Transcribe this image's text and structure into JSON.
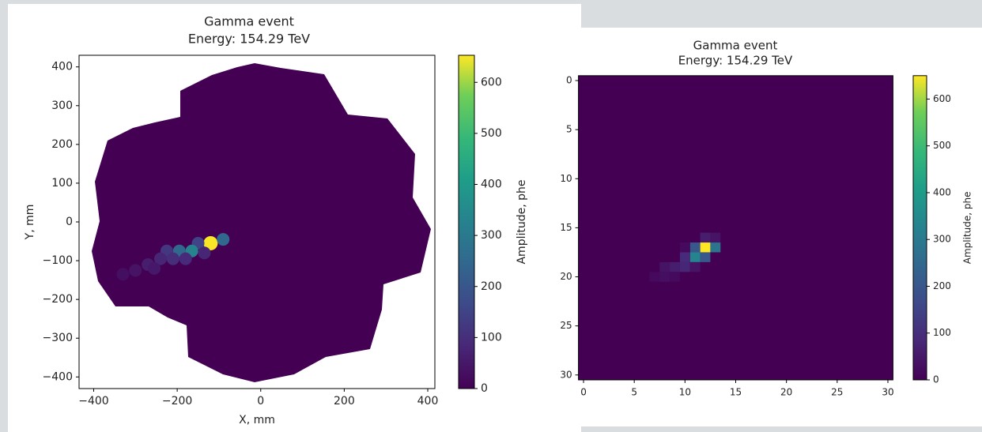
{
  "chart_data": [
    {
      "type": "hexcamera",
      "title": "Gamma event",
      "subtitle": "Energy: 154.29 TeV",
      "x_label": "X, mm",
      "y_label": "Y, mm",
      "colorbar_label": "Amplitude, phe",
      "xlim": [
        -435,
        417
      ],
      "ylim": [
        -430,
        430
      ],
      "xticks": [
        {
          "value": -400,
          "label": "−400"
        },
        {
          "value": -200,
          "label": "−200"
        },
        0,
        200,
        400
      ],
      "yticks": [
        {
          "value": -400,
          "label": "−400"
        },
        {
          "value": -300,
          "label": "−300"
        },
        {
          "value": -200,
          "label": "−200"
        },
        {
          "value": -100,
          "label": "−100"
        },
        0,
        100,
        200,
        300,
        400
      ],
      "clim": [
        0,
        653
      ],
      "cticks": [
        0,
        100,
        200,
        300,
        400,
        500,
        600
      ],
      "colormap": "viridis",
      "x": [
        -120,
        -150,
        -90,
        -165,
        -195,
        -225,
        -210,
        -240,
        -180,
        -270,
        -300,
        -330,
        -135,
        -255
      ],
      "y": [
        -55,
        -55,
        -45,
        -75,
        -75,
        -75,
        -95,
        -95,
        -95,
        -110,
        -125,
        -135,
        -80,
        -120
      ],
      "values": [
        650,
        150,
        250,
        330,
        250,
        120,
        100,
        80,
        90,
        60,
        40,
        30,
        80,
        50
      ]
    },
    {
      "type": "heatmap",
      "title": "Gamma event",
      "subtitle": "Energy: 154.29 TeV",
      "colorbar_label": "Amplitude, phe",
      "xlim": [
        -0.5,
        30.5
      ],
      "ylim": [
        30.5,
        -0.5
      ],
      "xticks": [
        0,
        5,
        10,
        15,
        20,
        25,
        30
      ],
      "yticks": [
        0,
        5,
        10,
        15,
        20,
        25,
        30
      ],
      "clim": [
        0,
        650
      ],
      "cticks": [
        0,
        100,
        200,
        300,
        400,
        500,
        600
      ],
      "colormap": "viridis",
      "x": [
        12,
        11,
        13,
        12,
        13,
        11,
        12,
        10,
        10,
        9,
        11,
        8,
        8,
        9,
        7,
        10
      ],
      "y": [
        17,
        17,
        17,
        16,
        16,
        18,
        18,
        18,
        19,
        19,
        19,
        19,
        20,
        20,
        20,
        17
      ],
      "values": [
        650,
        200,
        280,
        60,
        40,
        330,
        200,
        90,
        80,
        60,
        40,
        40,
        30,
        20,
        20,
        20
      ]
    }
  ]
}
